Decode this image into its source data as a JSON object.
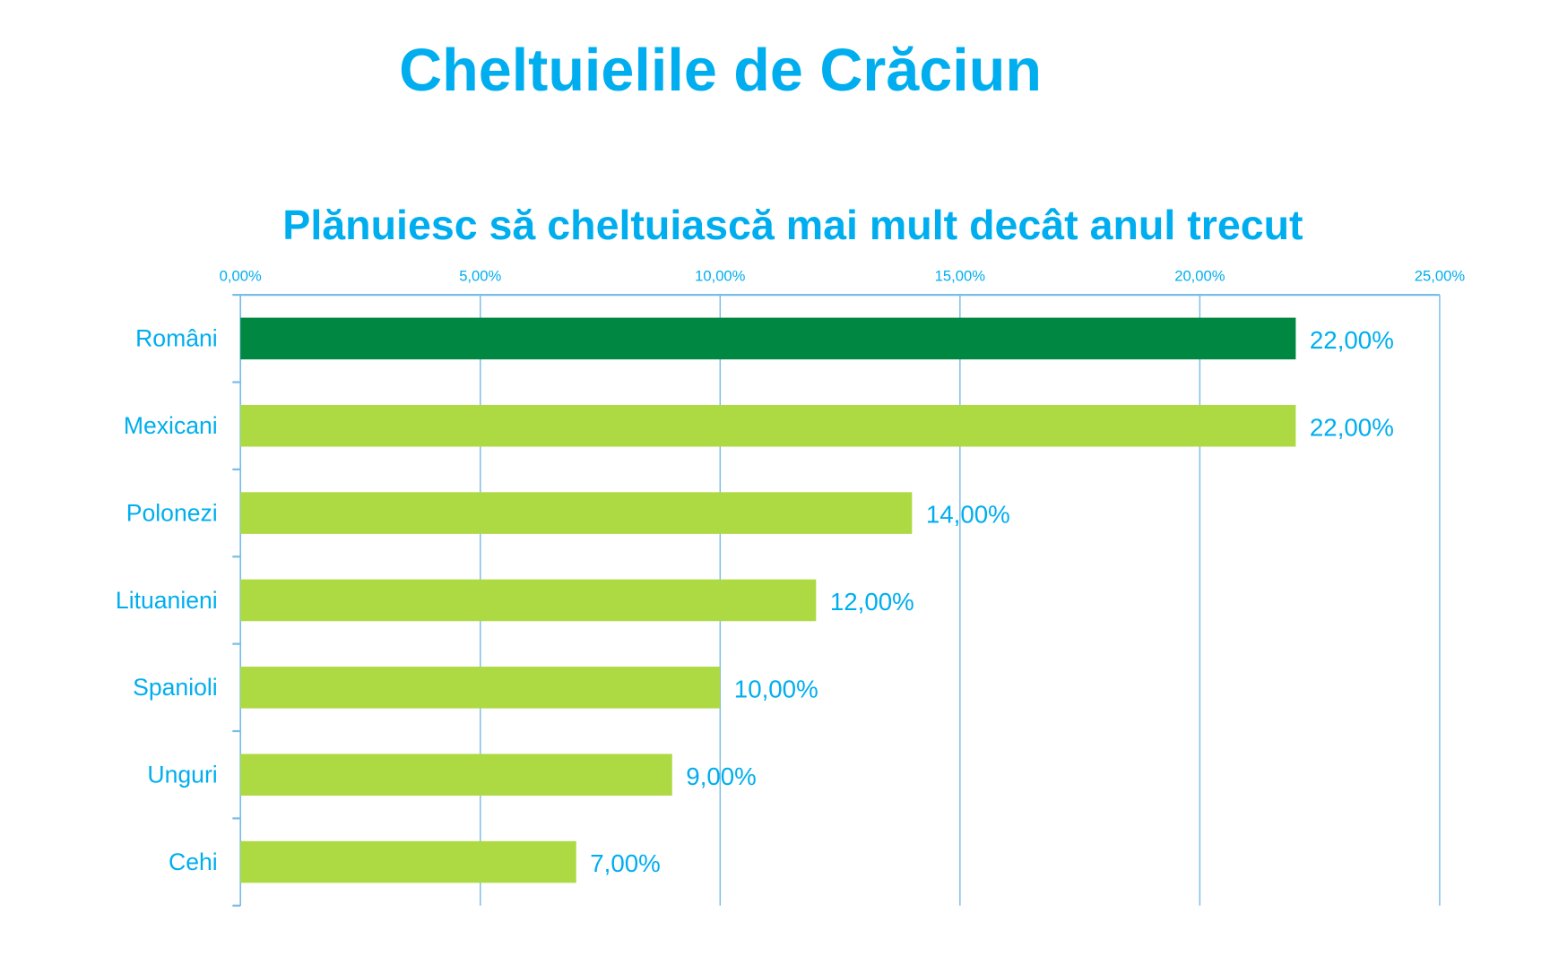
{
  "title": "Cheltuielile de Crăciun",
  "chart_data": {
    "type": "bar",
    "orientation": "horizontal",
    "title": "Plănuiesc să cheltuiască mai mult decât anul trecut",
    "categories": [
      "Români",
      "Mexicani",
      "Polonezi",
      "Lituanieni",
      "Spanioli",
      "Unguri",
      "Cehi"
    ],
    "values": [
      22,
      22,
      14,
      12,
      10,
      9,
      7
    ],
    "value_labels": [
      "22,00%",
      "22,00%",
      "14,00%",
      "12,00%",
      "10,00%",
      "9,00%",
      "7,00%"
    ],
    "xlim": [
      0,
      25
    ],
    "ticks": [
      0,
      5,
      10,
      15,
      20,
      25
    ],
    "tick_labels": [
      "0,00%",
      "5,00%",
      "10,00%",
      "15,00%",
      "20,00%",
      "25,00%"
    ],
    "axis_position": "top",
    "grid": true,
    "colors": {
      "highlight": "#008742",
      "bar": "#ADDA43",
      "text": "#00AEEF",
      "grid": "#7ABCE8"
    }
  }
}
